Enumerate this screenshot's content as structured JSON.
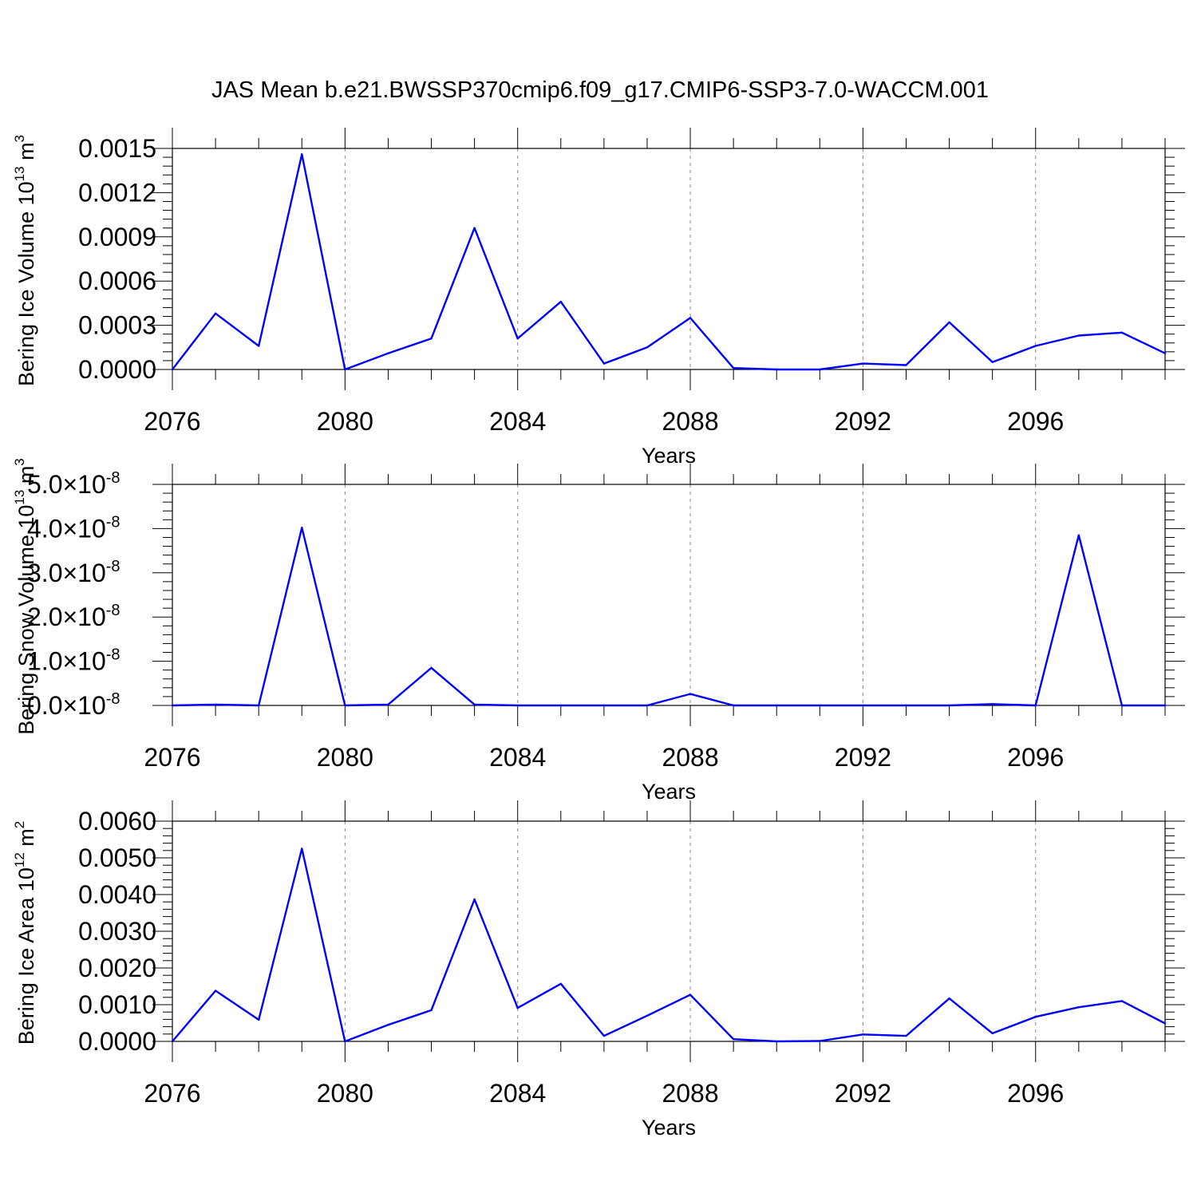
{
  "figure": {
    "title": "JAS Mean b.e21.BWSSP370cmip6.f09_g17.CMIP6-SSP3-7.0-WACCM.001"
  },
  "colors": {
    "line": "#0000ff",
    "axis": "#000000",
    "grid": "#888888"
  },
  "chart_data": [
    {
      "type": "line",
      "ylabel_main": "Bering Ice Volume 10",
      "ylabel_exp": "13",
      "ylabel_unit": " m",
      "ylabel_unit_exp": "3",
      "xlabel": "Years",
      "xlim": [
        2076,
        2099
      ],
      "ylim": [
        0,
        0.0015
      ],
      "x_ticks": [
        2076,
        2080,
        2084,
        2088,
        2092,
        2096
      ],
      "x_tick_labels": [
        "2076",
        "2080",
        "2084",
        "2088",
        "2092",
        "2096"
      ],
      "y_ticks": [
        0,
        0.0003,
        0.0006,
        0.0009,
        0.0012,
        0.0015
      ],
      "y_tick_labels": [
        "0.0000",
        "0.0003",
        "0.0006",
        "0.0009",
        "0.0012",
        "0.0015"
      ],
      "y_tick_style": "plain",
      "grid": "dashed vertical at major x ticks",
      "x": [
        2076,
        2077,
        2078,
        2079,
        2080,
        2081,
        2082,
        2083,
        2084,
        2085,
        2086,
        2087,
        2088,
        2089,
        2090,
        2091,
        2092,
        2093,
        2094,
        2095,
        2096,
        2097,
        2098,
        2099
      ],
      "values": [
        0.0,
        0.00038,
        0.00016,
        0.00146,
        0.0,
        0.00011,
        0.00021,
        0.00096,
        0.00021,
        0.00046,
        4e-05,
        0.00015,
        0.00035,
        1e-05,
        0.0,
        0.0,
        4e-05,
        3e-05,
        0.00032,
        5e-05,
        0.00016,
        0.00023,
        0.00025,
        0.00011
      ]
    },
    {
      "type": "line",
      "ylabel_main": "Bering Snow Volume 10",
      "ylabel_exp": "13",
      "ylabel_unit": " m",
      "ylabel_unit_exp": "3",
      "xlabel": "Years",
      "xlim": [
        2076,
        2099
      ],
      "ylim": [
        0,
        5e-08
      ],
      "x_ticks": [
        2076,
        2080,
        2084,
        2088,
        2092,
        2096
      ],
      "x_tick_labels": [
        "2076",
        "2080",
        "2084",
        "2088",
        "2092",
        "2096"
      ],
      "y_ticks": [
        0,
        1e-08,
        2e-08,
        3e-08,
        4e-08,
        5e-08
      ],
      "y_tick_labels": [
        "0.0",
        "1.0",
        "2.0",
        "3.0",
        "4.0",
        "5.0"
      ],
      "y_tick_style": "sci",
      "y_tick_times": "×10",
      "y_tick_exp": "-8",
      "grid": "dashed vertical at major x ticks",
      "x": [
        2076,
        2077,
        2078,
        2079,
        2080,
        2081,
        2082,
        2083,
        2084,
        2085,
        2086,
        2087,
        2088,
        2089,
        2090,
        2091,
        2092,
        2093,
        2094,
        2095,
        2096,
        2097,
        2098,
        2099
      ],
      "values": [
        0.0,
        2e-10,
        0.0,
        4.02e-08,
        0.0,
        2e-10,
        8.5e-09,
        2e-10,
        0.0,
        0.0,
        0.0,
        0.0,
        2.6e-09,
        0.0,
        0.0,
        0.0,
        0.0,
        0.0,
        0.0,
        3e-10,
        0.0,
        3.85e-08,
        0.0,
        0.0
      ]
    },
    {
      "type": "line",
      "ylabel_main": "Bering Ice Area 10",
      "ylabel_exp": "12",
      "ylabel_unit": " m",
      "ylabel_unit_exp": "2",
      "xlabel": "Years",
      "xlim": [
        2076,
        2099
      ],
      "ylim": [
        0,
        0.006
      ],
      "x_ticks": [
        2076,
        2080,
        2084,
        2088,
        2092,
        2096
      ],
      "x_tick_labels": [
        "2076",
        "2080",
        "2084",
        "2088",
        "2092",
        "2096"
      ],
      "y_ticks": [
        0,
        0.001,
        0.002,
        0.003,
        0.004,
        0.005,
        0.006
      ],
      "y_tick_labels": [
        "0.0000",
        "0.0010",
        "0.0020",
        "0.0030",
        "0.0040",
        "0.0050",
        "0.0060"
      ],
      "y_tick_style": "plain",
      "grid": "dashed vertical at major x ticks",
      "x": [
        2076,
        2077,
        2078,
        2079,
        2080,
        2081,
        2082,
        2083,
        2084,
        2085,
        2086,
        2087,
        2088,
        2089,
        2090,
        2091,
        2092,
        2093,
        2094,
        2095,
        2096,
        2097,
        2098,
        2099
      ],
      "values": [
        0.0,
        0.00138,
        0.00059,
        0.00525,
        0.0,
        0.00045,
        0.00085,
        0.00387,
        0.00091,
        0.00157,
        0.00015,
        0.0007,
        0.00127,
        6e-05,
        0.0,
        1e-05,
        0.00019,
        0.00015,
        0.00117,
        0.00022,
        0.00067,
        0.00093,
        0.0011,
        0.00049
      ]
    }
  ]
}
